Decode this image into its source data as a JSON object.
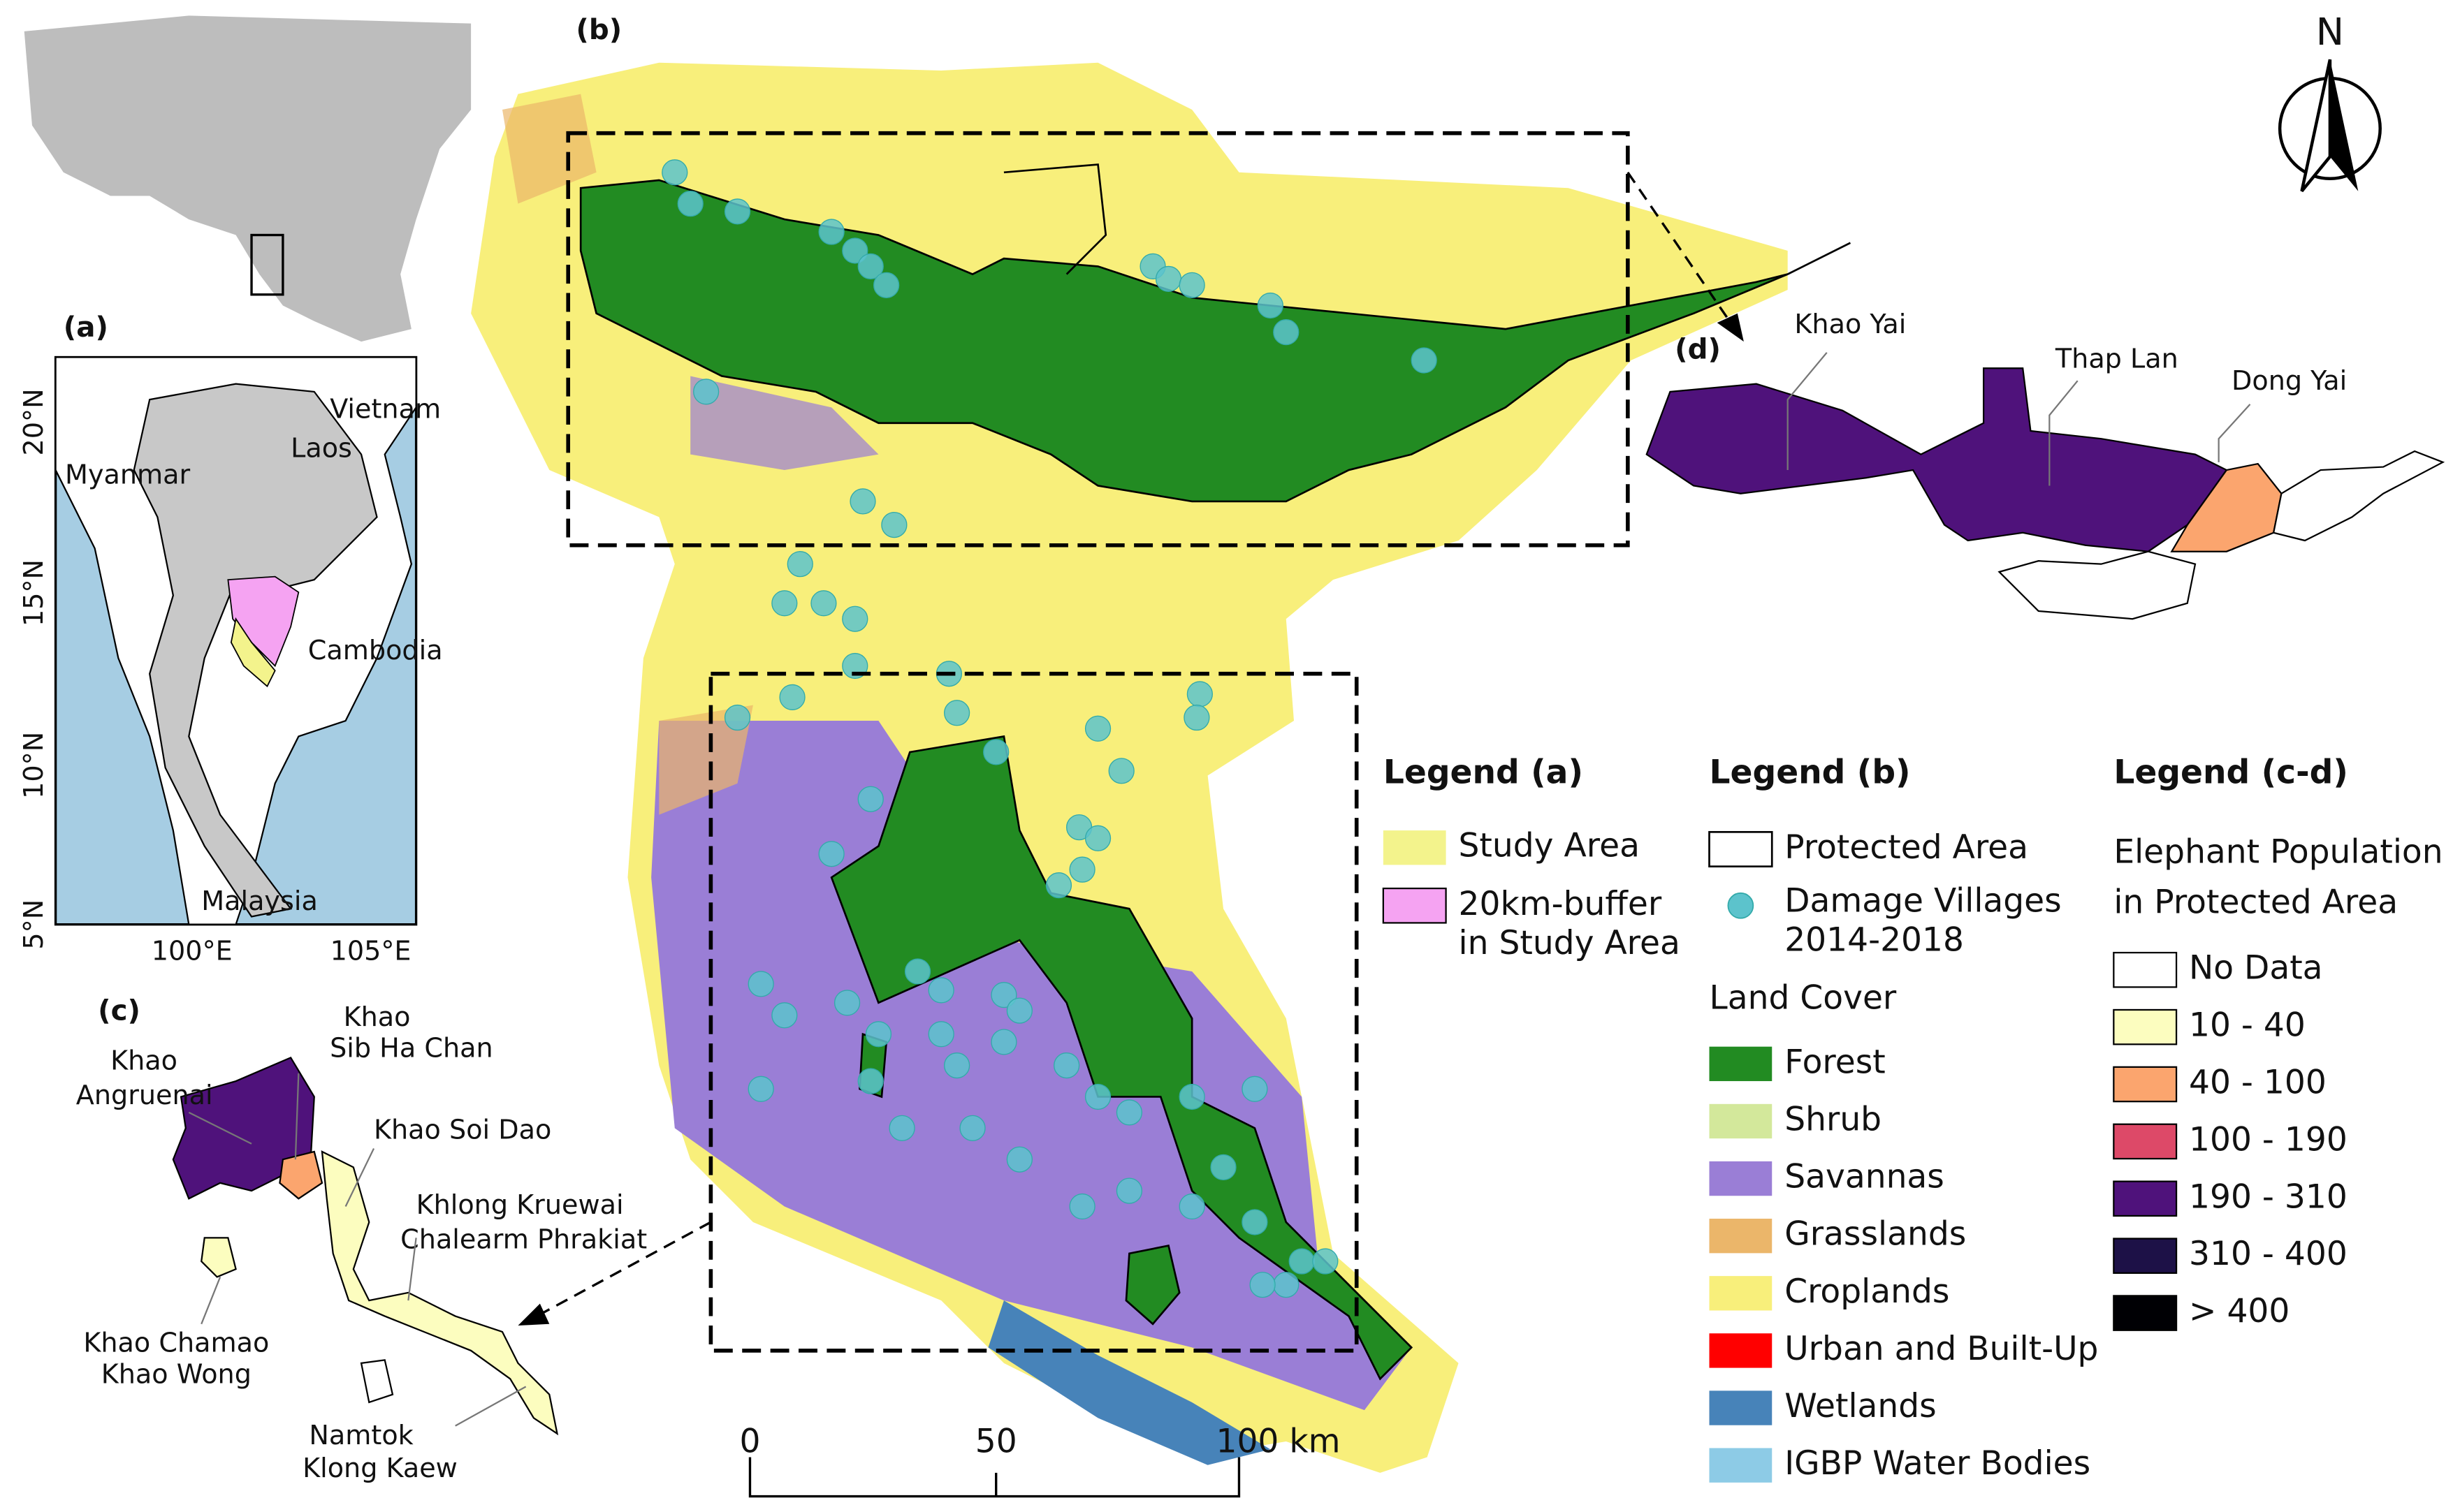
{
  "panel_labels": [
    "(a)",
    "(b)",
    "(c)",
    "(d)"
  ],
  "north": "N",
  "map_a": {
    "lat_labels": [
      "20°N",
      "15°N",
      "10°N",
      "5°N"
    ],
    "lon_labels": [
      "100°E",
      "105°E"
    ],
    "countries": [
      "Myanmar",
      "Laos",
      "Vietnam",
      "Cambodia",
      "Malaysia"
    ]
  },
  "map_c": {
    "areas": [
      [
        "Khao",
        "Angruenai"
      ],
      [
        "Khao",
        "Sib Ha Chan"
      ],
      [
        "Khao Soi Dao"
      ],
      [
        "Khlong Kruewai",
        "Chalearm Phrakiat"
      ],
      [
        "Khao Chamao",
        "Khao Wong"
      ],
      [
        "Namtok",
        "Klong Kaew"
      ]
    ]
  },
  "map_d": {
    "areas": [
      "Khao Yai",
      "Thap Lan",
      "Dong Yai"
    ]
  },
  "scale_bar": [
    "0",
    "50",
    "100 km"
  ],
  "legend_a": {
    "title": "Legend (a)",
    "items": [
      {
        "lines": [
          "Study Area"
        ],
        "color": "#f3f38c"
      },
      {
        "lines": [
          "20km-buffer",
          "in Study Area"
        ],
        "color": "#f5a3f2"
      }
    ]
  },
  "legend_b": {
    "title": "Legend (b)",
    "protected": "Protected Area",
    "villages": [
      "Damage Villages",
      "2014-2018"
    ],
    "village_color": "#5cc3cc",
    "land_cover_title": "Land Cover",
    "land_cover": [
      {
        "name": "Forest",
        "color": "#228b22"
      },
      {
        "name": "Shrub",
        "color": "#d3e89b"
      },
      {
        "name": "Savannas",
        "color": "#9a7ed6"
      },
      {
        "name": "Grasslands",
        "color": "#ebb66a"
      },
      {
        "name": "Croplands",
        "color": "#f8ef7b"
      },
      {
        "name": "Urban and Built-Up",
        "color": "#ff0000"
      },
      {
        "name": "Wetlands",
        "color": "#4783b9"
      },
      {
        "name": "IGBP Water Bodies",
        "color": "#8dcbe6"
      }
    ]
  },
  "legend_cd": {
    "title": "Legend (c-d)",
    "subtitle": [
      "Elephant Population",
      "in Protected Area"
    ],
    "classes": [
      {
        "name": "No Data",
        "color": "#ffffff"
      },
      {
        "name": "10 - 40",
        "color": "#fcfdbf"
      },
      {
        "name": "40 - 100",
        "color": "#fba56e"
      },
      {
        "name": "100 - 190",
        "color": "#dd4968"
      },
      {
        "name": "190 - 310",
        "color": "#4f127b"
      },
      {
        "name": "310 - 400",
        "color": "#1d1147"
      },
      {
        "name": "> 400",
        "color": "#000004"
      }
    ]
  }
}
